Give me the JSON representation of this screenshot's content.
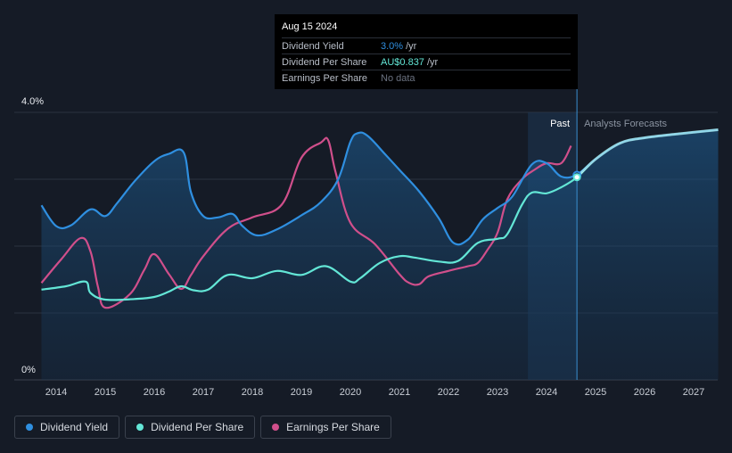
{
  "chart_data": {
    "type": "line",
    "y_tick_labels": [
      "4.0%",
      "0%"
    ],
    "ylim": [
      0,
      4.0
    ],
    "xlim": [
      2013.7,
      2027.5
    ],
    "x_tick_labels": [
      "2014",
      "2015",
      "2016",
      "2017",
      "2018",
      "2019",
      "2020",
      "2021",
      "2022",
      "2023",
      "2024",
      "2025",
      "2026",
      "2027"
    ],
    "past_label": "Past",
    "forecast_label": "Analysts Forecasts",
    "forecast_start": 2024.62,
    "shade_start": 2023.62,
    "grid": true,
    "series": [
      {
        "name": "Dividend Yield",
        "color": "#2f8fe0",
        "fill": true,
        "x": [
          2013.7,
          2014.0,
          2014.3,
          2014.7,
          2015.0,
          2015.25,
          2015.6,
          2016.0,
          2016.3,
          2016.6,
          2016.75,
          2017.0,
          2017.3,
          2017.6,
          2017.8,
          2018.1,
          2018.5,
          2019.0,
          2019.4,
          2019.75,
          2020.0,
          2020.15,
          2020.35,
          2020.7,
          2021.0,
          2021.4,
          2021.8,
          2022.1,
          2022.4,
          2022.7,
          2023.0,
          2023.3,
          2023.7,
          2024.0,
          2024.3,
          2024.62,
          2025.0,
          2025.5,
          2026.0,
          2026.7,
          2027.5
        ],
        "y": [
          2.61,
          2.3,
          2.31,
          2.55,
          2.45,
          2.65,
          2.97,
          3.27,
          3.38,
          3.4,
          2.8,
          2.45,
          2.43,
          2.48,
          2.3,
          2.16,
          2.25,
          2.46,
          2.66,
          3.0,
          3.56,
          3.69,
          3.65,
          3.38,
          3.14,
          2.82,
          2.42,
          2.05,
          2.1,
          2.4,
          2.57,
          2.74,
          3.22,
          3.24,
          3.04,
          3.07,
          3.3,
          3.54,
          3.62,
          3.68,
          3.74
        ]
      },
      {
        "name": "Dividend Per Share",
        "color": "#63e6d6",
        "fill": false,
        "x": [
          2013.7,
          2014.2,
          2014.6,
          2014.7,
          2015.0,
          2015.6,
          2016.0,
          2016.3,
          2016.55,
          2016.8,
          2017.1,
          2017.5,
          2018.0,
          2018.5,
          2019.0,
          2019.5,
          2020.0,
          2020.2,
          2020.6,
          2021.0,
          2021.3,
          2021.8,
          2022.2,
          2022.6,
          2023.0,
          2023.2,
          2023.5,
          2023.7,
          2024.0,
          2024.3,
          2024.62,
          2025.0,
          2025.5,
          2026.0,
          2026.7,
          2027.5
        ],
        "y": [
          1.35,
          1.4,
          1.47,
          1.3,
          1.2,
          1.21,
          1.24,
          1.32,
          1.4,
          1.34,
          1.35,
          1.57,
          1.52,
          1.63,
          1.57,
          1.7,
          1.47,
          1.52,
          1.75,
          1.85,
          1.83,
          1.77,
          1.78,
          2.05,
          2.11,
          2.18,
          2.62,
          2.8,
          2.79,
          2.88,
          3.03,
          3.3,
          3.54,
          3.62,
          3.68,
          3.74
        ]
      },
      {
        "name": "Earnings Per Share",
        "color": "#d04f8b",
        "fill": false,
        "x": [
          2013.7,
          2014.1,
          2014.5,
          2014.7,
          2014.85,
          2015.0,
          2015.5,
          2015.8,
          2016.0,
          2016.3,
          2016.55,
          2016.75,
          2017.0,
          2017.5,
          2018.0,
          2018.6,
          2019.0,
          2019.4,
          2019.55,
          2019.7,
          2020.0,
          2020.5,
          2021.0,
          2021.2,
          2021.4,
          2021.6,
          2022.0,
          2022.4,
          2022.6,
          2022.8,
          2023.0,
          2023.2,
          2023.5,
          2023.75,
          2024.0,
          2024.3,
          2024.5
        ],
        "y": [
          1.45,
          1.8,
          2.12,
          1.92,
          1.4,
          1.08,
          1.28,
          1.65,
          1.88,
          1.58,
          1.36,
          1.57,
          1.85,
          2.26,
          2.43,
          2.62,
          3.32,
          3.55,
          3.58,
          3.1,
          2.35,
          2.03,
          1.58,
          1.45,
          1.43,
          1.55,
          1.63,
          1.7,
          1.75,
          1.95,
          2.2,
          2.7,
          3.0,
          3.14,
          3.24,
          3.24,
          3.5
        ]
      }
    ]
  },
  "tooltip": {
    "date": "Aug 15 2024",
    "rows": [
      {
        "label": "Dividend Yield",
        "value": "3.0%",
        "unit": "/yr",
        "color": "#2f8fe0"
      },
      {
        "label": "Dividend Per Share",
        "value": "AU$0.837",
        "unit": "/yr",
        "color": "#63e6d6"
      },
      {
        "label": "Earnings Per Share",
        "value": "No data",
        "unit": "",
        "color": "#6b7280"
      }
    ]
  },
  "legend": [
    {
      "label": "Dividend Yield",
      "color": "#2f8fe0"
    },
    {
      "label": "Dividend Per Share",
      "color": "#63e6d6"
    },
    {
      "label": "Earnings Per Share",
      "color": "#d04f8b"
    }
  ]
}
